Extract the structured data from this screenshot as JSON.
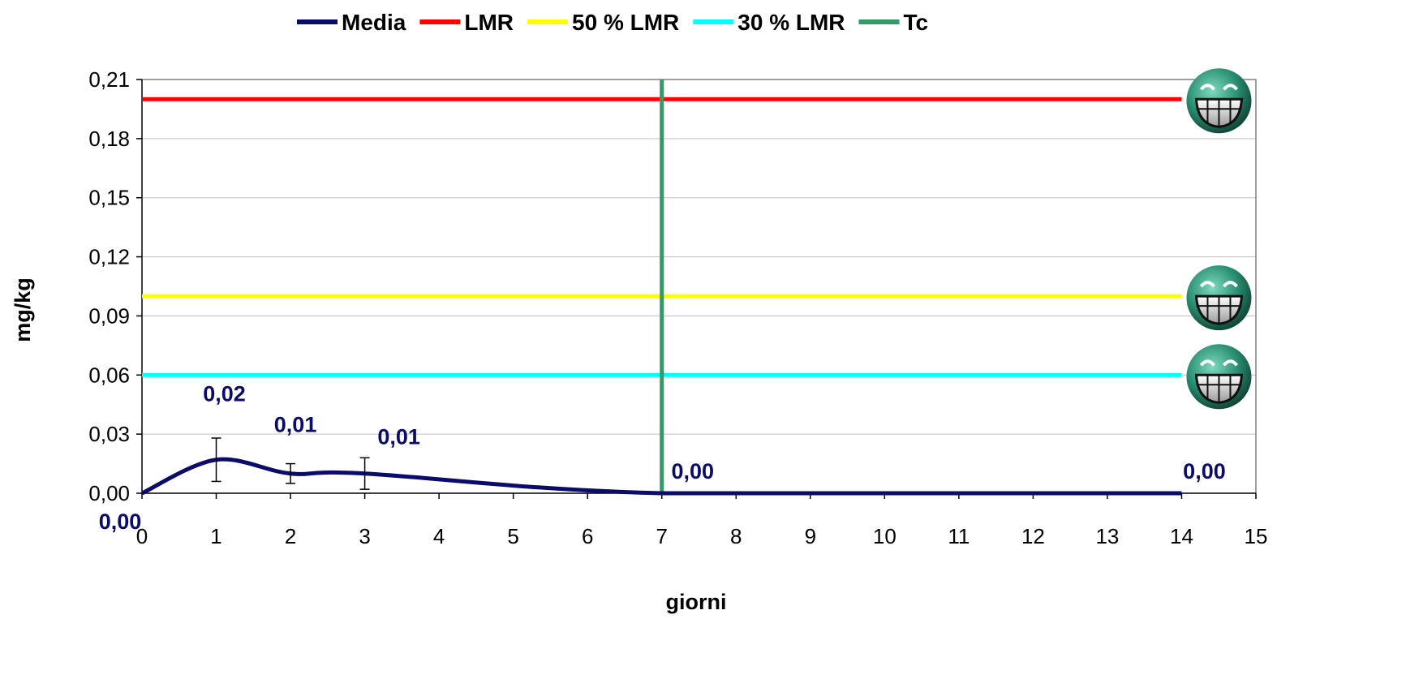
{
  "chart_data": {
    "type": "line",
    "xlabel": "giorni",
    "ylabel": "mg/kg",
    "xlim": [
      0,
      15
    ],
    "ylim": [
      0,
      0.21
    ],
    "x_ticks": [
      0,
      1,
      2,
      3,
      4,
      5,
      6,
      7,
      8,
      9,
      10,
      11,
      12,
      13,
      14,
      15
    ],
    "x_tick_labels": [
      "0",
      "1",
      "2",
      "3",
      "4",
      "5",
      "6",
      "7",
      "8",
      "9",
      "10",
      "11",
      "12",
      "13",
      "14",
      "15"
    ],
    "y_ticks": [
      0,
      0.03,
      0.06,
      0.09,
      0.12,
      0.15,
      0.18,
      0.21
    ],
    "y_tick_labels": [
      "0,00",
      "0,03",
      "0,06",
      "0,09",
      "0,12",
      "0,15",
      "0,18",
      "0,21"
    ],
    "grid": "horizontal",
    "legend_position": "top-center",
    "series": [
      {
        "name": "Media",
        "color": "#0b0b6b",
        "x": [
          0,
          1,
          2,
          3,
          7,
          14
        ],
        "y": [
          0.0,
          0.017,
          0.01,
          0.01,
          0.0,
          0.0
        ],
        "labels": [
          "0,00",
          "0,02",
          "0,01",
          "0,01",
          "0,00",
          "0,00"
        ],
        "error": [
          0,
          0.011,
          0.005,
          0.008,
          0,
          0
        ]
      },
      {
        "name": "LMR",
        "color": "#ff0000",
        "y_const": 0.2,
        "x_range": [
          0,
          14
        ]
      },
      {
        "name": "50 % LMR",
        "color": "#ffff00",
        "y_const": 0.1,
        "x_range": [
          0,
          14
        ]
      },
      {
        "name": "30 % LMR",
        "color": "#00ffff",
        "y_const": 0.06,
        "x_range": [
          0,
          14
        ]
      },
      {
        "name": "Tc",
        "color": "#339966",
        "x_const": 7
      }
    ]
  }
}
